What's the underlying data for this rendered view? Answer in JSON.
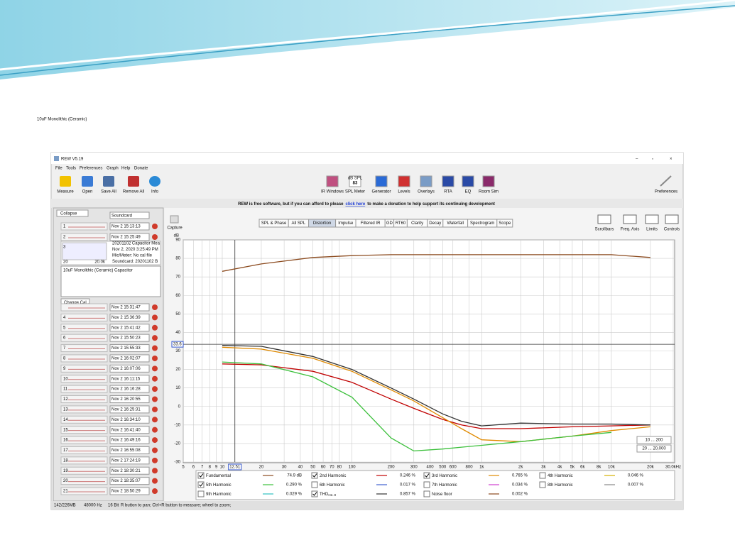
{
  "slide": {
    "title": "10uF Monolithic (Ceramic)"
  },
  "window": {
    "title": "REW V5.19",
    "menu": [
      "File",
      "Tools",
      "Preferences",
      "Graph",
      "Help",
      "Donate"
    ],
    "toolbar_left": [
      "Measure",
      "Open",
      "Save All",
      "Remove All",
      "Info"
    ],
    "toolbar_center": [
      "IR Windows",
      "SPL Meter",
      "Generator",
      "Levels",
      "Overlays",
      "RTA",
      "EQ",
      "Room Sim"
    ],
    "toolbar_right": [
      "Preferences"
    ],
    "spl_badge": {
      "unit": "dB SPL",
      "value": "83"
    },
    "banner": {
      "before": "REW is free software, but if you can afford to please",
      "link": "click here",
      "after": "to make a donation to help support its continuing development"
    }
  },
  "sidebar": {
    "collapse": "Collapse",
    "soundcard": "Soundcard",
    "entries": [
      {
        "number": "1",
        "date": "Nov 2 15:13:13"
      },
      {
        "number": "2",
        "date": "Nov 2 15:25:49"
      }
    ],
    "details": {
      "number": "3",
      "lines": [
        "20201102 Capacitor Mea",
        "Nov 2, 2020 3:25:49 PM",
        "Mic/Meter: No cal file",
        "Soundcard: 20201102 B"
      ],
      "axis": [
        "20",
        "20.0k"
      ],
      "notes": "10uF Monolithic (Ceramic) Capacitor",
      "change_cal": "Change Cal..."
    },
    "entries2": [
      {
        "date": "Nov 2 15:31:47"
      },
      {
        "number": "4",
        "date": "Nov 2 15:36:39"
      },
      {
        "number": "5",
        "date": "Nov 2 15:41:42"
      },
      {
        "number": "6",
        "date": "Nov 2 15:50:23"
      },
      {
        "number": "7",
        "date": "Nov 2 15:55:33"
      },
      {
        "number": "8",
        "date": "Nov 2 16:02:07"
      },
      {
        "number": "9",
        "date": "Nov 2 16:07:06"
      },
      {
        "number": "10",
        "date": "Nov 2 16:11:15"
      },
      {
        "number": "11",
        "date": "Nov 2 16:16:28"
      },
      {
        "number": "12",
        "date": "Nov 2 16:20:55"
      },
      {
        "number": "13",
        "date": "Nov 2 16:25:31"
      },
      {
        "number": "14",
        "date": "Nov 2 16:34:10"
      },
      {
        "number": "15",
        "date": "Nov 2 16:41:40"
      },
      {
        "number": "16",
        "date": "Nov 2 16:49:16"
      },
      {
        "number": "17",
        "date": "Nov 2 16:55:08"
      },
      {
        "number": "18",
        "date": "Nov 2 17:24:19"
      },
      {
        "number": "19",
        "date": "Nov 2 18:30:21"
      },
      {
        "number": "20",
        "date": "Nov 2 18:35:07"
      },
      {
        "number": "21",
        "date": "Nov 2 18:50:29"
      }
    ]
  },
  "graph": {
    "capture": "Capture",
    "tabs": [
      "SPL & Phase",
      "All SPL",
      "Distortion",
      "Impulse",
      "Filtered IR",
      "GD",
      "RT60",
      "Clarity",
      "Decay",
      "Waterfall",
      "Spectrogram",
      "Scope"
    ],
    "active_tab": "Distortion",
    "tools": [
      "Scrollbars",
      "Freq. Axis",
      "Limits",
      "Controls"
    ],
    "y_unit": "dB",
    "ylim": [
      -30,
      90
    ],
    "yticks": [
      90,
      80,
      70,
      60,
      50,
      40,
      30,
      20,
      10,
      0,
      -10,
      -20,
      -30
    ],
    "xlim": [
      5,
      30000
    ],
    "log_x": true,
    "xticks": [
      5,
      6,
      7,
      8,
      9,
      10,
      20,
      30,
      40,
      50,
      60,
      70,
      80,
      100,
      200,
      300,
      400,
      500,
      600,
      800,
      {
        "value": 1000,
        "label": "1k"
      },
      {
        "value": 2000,
        "label": "2k"
      },
      {
        "value": 3000,
        "label": "3k"
      },
      {
        "value": 4000,
        "label": "4k"
      },
      {
        "value": 5000,
        "label": "5k"
      },
      {
        "value": 6000,
        "label": "6k"
      },
      {
        "value": 8000,
        "label": "8k"
      },
      {
        "value": 10000,
        "label": "10k"
      },
      {
        "value": 20000,
        "label": "20k"
      },
      {
        "value": 30000,
        "label": "30.0kHz"
      }
    ],
    "cursor": {
      "x": 12.51,
      "y": 33.6
    },
    "x": [
      10,
      20,
      50,
      100,
      200,
      300,
      500,
      700,
      1000,
      2000,
      5000,
      10000,
      20000
    ],
    "range_buttons": [
      "10 ... 200",
      "20 ... 20,000"
    ]
  },
  "legend": {
    "items": [
      {
        "label": "Fundamental",
        "value": "74.9 dB",
        "color": "#8b4a1e",
        "checked": true,
        "values": [
          73,
          77,
          80.5,
          81.5,
          82,
          82,
          82,
          82,
          82,
          82,
          82,
          82,
          80.5
        ]
      },
      {
        "label": "2nd Harmonic",
        "value": "0.246 %",
        "color": "#c00000",
        "checked": true,
        "values": [
          23,
          22.5,
          19,
          13,
          4,
          -1,
          -7,
          -10,
          -12,
          -12,
          -11,
          -10.5,
          -10
        ]
      },
      {
        "label": "3rd Harmonic",
        "value": "0.765 %",
        "color": "#e08a00",
        "checked": true,
        "values": [
          32,
          31,
          26,
          19,
          9,
          3,
          -6,
          -12,
          -18,
          -19,
          -16,
          -13,
          -11
        ]
      },
      {
        "label": "4th Harmonic",
        "value": "0.046 %",
        "color": "#d4b000",
        "checked": false
      },
      {
        "label": "5th Harmonic",
        "value": "0.290 %",
        "color": "#3cc03c",
        "checked": true,
        "values": [
          24,
          23,
          16,
          5,
          -17,
          -24,
          -23,
          -22,
          -21,
          -19,
          -16,
          -14,
          null
        ]
      },
      {
        "label": "6th Harmonic",
        "value": "0.017 %",
        "color": "#4060d0",
        "checked": false
      },
      {
        "label": "7th Harmonic",
        "value": "0.034 %",
        "color": "#d040d0",
        "checked": false
      },
      {
        "label": "8th Harmonic",
        "value": "0.007 %",
        "color": "#888888",
        "checked": false
      },
      {
        "label": "9th Harmonic",
        "value": "0.029 %",
        "color": "#30c0c0",
        "checked": false
      },
      {
        "label": "THD",
        "sub": "H2..9",
        "value": "0.857 %",
        "color": "#333333",
        "checked": true,
        "values": [
          33,
          32.5,
          27,
          20,
          10,
          4,
          -4,
          -8,
          -10.5,
          -9,
          -9.5,
          -9.5,
          -10
        ]
      },
      {
        "label": "Noise floor",
        "value": "0.002 %",
        "color": "#8b4a1e",
        "checked": false
      }
    ]
  },
  "status": [
    "142/226MB",
    "48000 Hz",
    "16 Bit",
    "R button to pan; Ctrl+R button to measure; wheel to zoom;"
  ]
}
